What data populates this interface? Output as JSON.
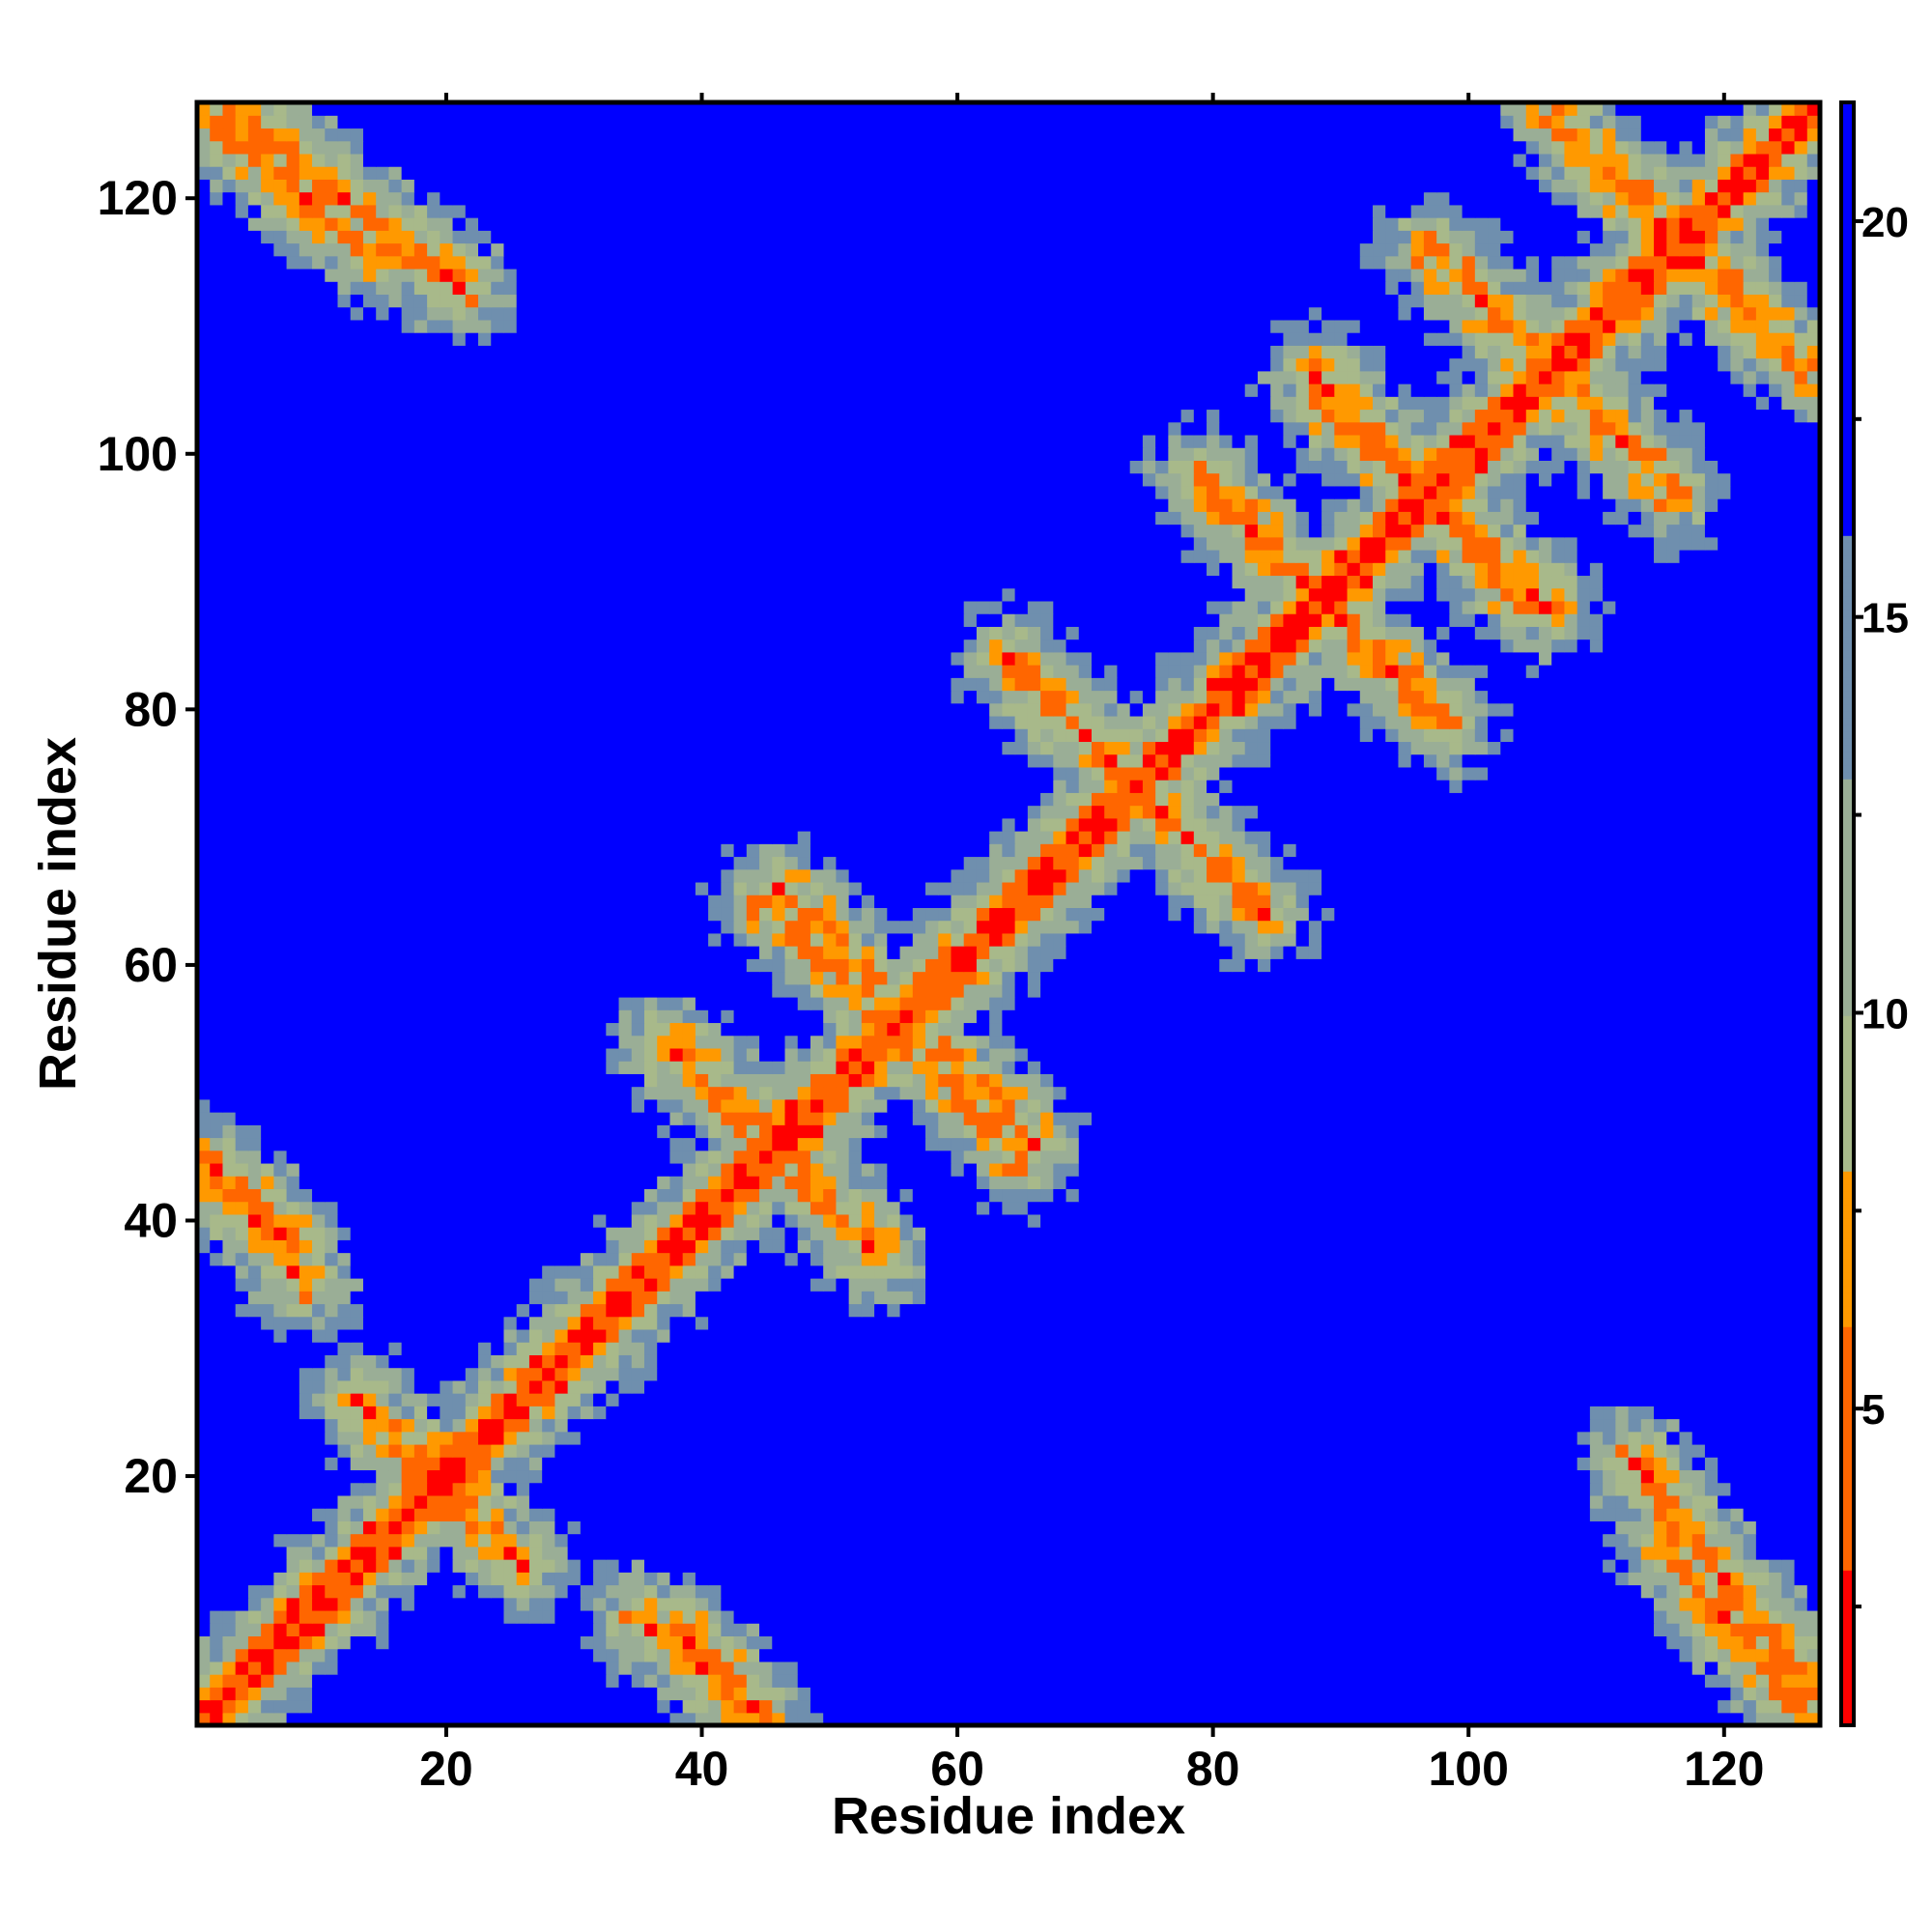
{
  "chart_data": {
    "type": "heatmap",
    "title": "",
    "xlabel": "Residue index",
    "ylabel": "Residue index",
    "n_residues": 127,
    "xlim": [
      1,
      127
    ],
    "ylim": [
      1,
      127
    ],
    "x_ticks": [
      20,
      40,
      60,
      80,
      100,
      120
    ],
    "y_ticks": [
      20,
      40,
      60,
      80,
      100,
      120
    ],
    "colorbar": {
      "range": [
        1,
        21.5
      ],
      "ticks": [
        5,
        10,
        15,
        20
      ],
      "colors": [
        "#ff0000",
        "#ff6600",
        "#ff9900",
        "#a8b98a",
        "#9aae96",
        "#6f8fae",
        "#0000ff"
      ],
      "thresholds": [
        3,
        6,
        8,
        10,
        13,
        16
      ]
    },
    "contact_bands": [
      {
        "from": [
          37,
          54
        ],
        "to": [
          48,
          44
        ],
        "note": "antiparallel"
      },
      {
        "from": [
          45,
          65
        ],
        "to": [
          66,
          46
        ],
        "note": "antiparallel"
      },
      {
        "from": [
          38,
          8
        ],
        "to": [
          44,
          2
        ],
        "note": "antiparallel"
      },
      {
        "from": [
          2,
          126
        ],
        "to": [
          14,
          116
        ],
        "note": "antiparallel"
      },
      {
        "from": [
          2,
          43
        ],
        "to": [
          9,
          35
        ],
        "note": "antiparallel"
      },
      {
        "from": [
          79,
          98
        ],
        "to": [
          89,
          88
        ],
        "note": "antiparallel"
      },
      {
        "from": [
          89,
          104
        ],
        "to": [
          106,
          88
        ],
        "note": "antiparallel"
      },
      {
        "from": [
          97,
          116
        ],
        "to": [
          114,
          99
        ],
        "note": "antiparallel"
      },
      {
        "from": [
          107,
          126
        ],
        "to": [
          126,
          107
        ],
        "note": "antiparallel"
      },
      {
        "from": [
          64,
          84
        ],
        "to": [
          84,
          64
        ],
        "note": "antiparallel"
      },
      {
        "from": [
          113,
          21
        ],
        "to": [
          127,
          3
        ],
        "note": "antiparallel"
      },
      {
        "from": [
          13,
          26
        ],
        "to": [
          25,
          14
        ],
        "note": "parallel"
      }
    ]
  }
}
